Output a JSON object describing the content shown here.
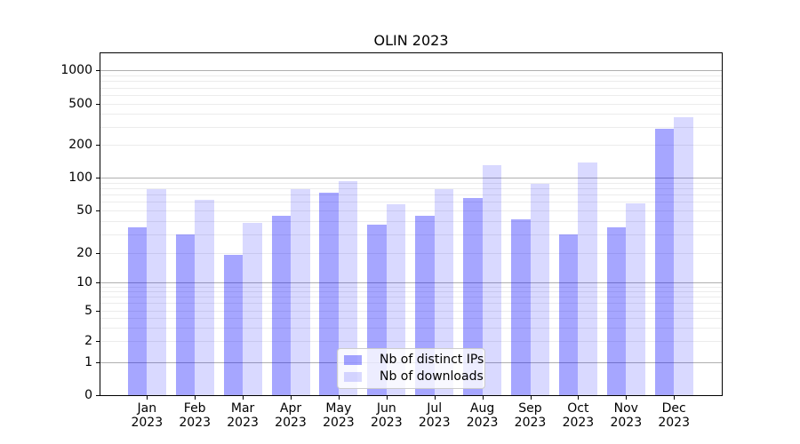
{
  "figure": {
    "title": "OLIN 2023"
  },
  "legend": {
    "items": [
      {
        "label": "Nb of distinct IPs",
        "series_key": "ips"
      },
      {
        "label": "Nb of downloads",
        "series_key": "downloads"
      }
    ]
  },
  "colors": {
    "ips_bar": "rgba(0,0,255,0.35)",
    "downloads_bar": "rgba(0,0,255,0.15)",
    "major_grid": "#b0b0b0",
    "minor_grid": "#ececec",
    "axis": "#000000"
  },
  "chart_data": {
    "type": "bar",
    "title": "OLIN 2023",
    "scale_y": "symlog",
    "grid": true,
    "legend_position": "lower center",
    "categories": [
      "Jan 2023",
      "Feb 2023",
      "Mar 2023",
      "Apr 2023",
      "May 2023",
      "Jun 2023",
      "Jul 2023",
      "Aug 2023",
      "Sep 2023",
      "Oct 2023",
      "Nov 2023",
      "Dec 2023"
    ],
    "series": [
      {
        "name": "Nb of distinct IPs",
        "key": "ips",
        "values": [
          35,
          30,
          19,
          45,
          73,
          37,
          45,
          65,
          41,
          30,
          35,
          285
        ]
      },
      {
        "name": "Nb of downloads",
        "key": "downloads",
        "values": [
          78,
          63,
          38,
          78,
          93,
          57,
          78,
          130,
          88,
          138,
          58,
          370
        ]
      }
    ],
    "y_ticks": [
      0,
      1,
      2,
      5,
      10,
      20,
      50,
      100,
      200,
      500,
      1000
    ],
    "y_minor_gridlines": [
      2,
      3,
      4,
      5,
      6,
      7,
      8,
      9,
      20,
      30,
      40,
      50,
      60,
      70,
      80,
      90,
      200,
      300,
      400,
      500,
      600,
      700,
      800,
      900
    ],
    "y_major_gridlines": [
      1,
      10,
      100,
      1000
    ],
    "ylim": [
      0,
      1400
    ],
    "xlabel": "",
    "ylabel": ""
  }
}
